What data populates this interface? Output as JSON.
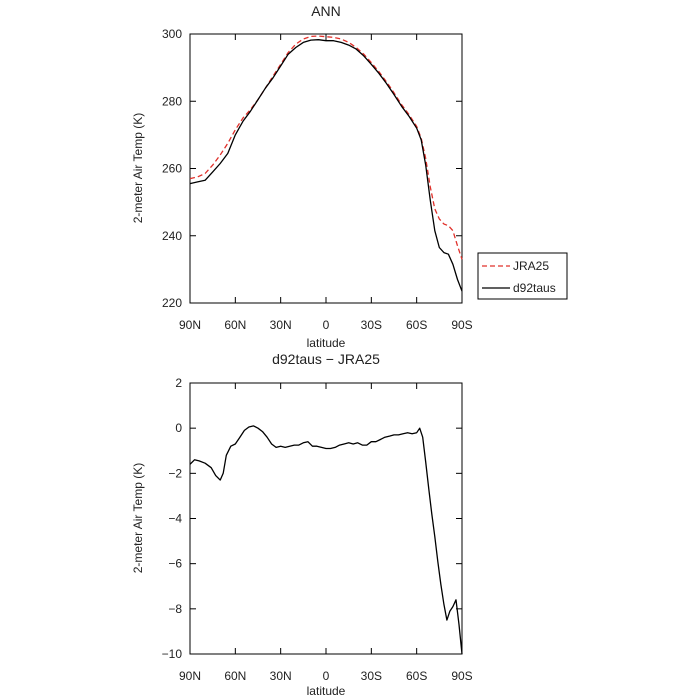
{
  "chart_data": [
    {
      "type": "line",
      "title": "ANN",
      "xlabel": "latitude",
      "ylabel": "2-meter Air Temp (K)",
      "xlim": [
        90,
        -90
      ],
      "ylim": [
        220,
        300
      ],
      "x_ticks": [
        90,
        60,
        30,
        0,
        -30,
        -60,
        -90
      ],
      "x_tick_labels": [
        "90N",
        "60N",
        "30N",
        "0",
        "30S",
        "60S",
        "90S"
      ],
      "y_ticks": [
        220,
        240,
        260,
        280,
        300
      ],
      "y_tick_labels": [
        "220",
        "240",
        "260",
        "280",
        "300"
      ],
      "legend": {
        "placement": "right"
      },
      "series": [
        {
          "name": "JRA25",
          "color": "#e0302a",
          "dash": true,
          "points": [
            [
              90,
              257.0
            ],
            [
              85,
              257.5
            ],
            [
              80,
              258.5
            ],
            [
              75,
              261
            ],
            [
              70,
              264
            ],
            [
              65,
              267.5
            ],
            [
              60,
              271.5
            ],
            [
              55,
              275
            ],
            [
              50,
              277.5
            ],
            [
              45,
              280.5
            ],
            [
              40,
              284
            ],
            [
              35,
              287.5
            ],
            [
              30,
              291
            ],
            [
              25,
              294.5
            ],
            [
              20,
              297
            ],
            [
              15,
              298.5
            ],
            [
              10,
              299.3
            ],
            [
              5,
              299.4
            ],
            [
              0,
              299.2
            ],
            [
              -5,
              299.0
            ],
            [
              -10,
              298.5
            ],
            [
              -15,
              297.5
            ],
            [
              -20,
              296.0
            ],
            [
              -25,
              294.0
            ],
            [
              -30,
              291.5
            ],
            [
              -35,
              288.8
            ],
            [
              -40,
              285.8
            ],
            [
              -45,
              282.5
            ],
            [
              -50,
              279.0
            ],
            [
              -55,
              276.0
            ],
            [
              -60,
              272.5
            ],
            [
              -63,
              269.0
            ],
            [
              -66,
              263.0
            ],
            [
              -69,
              254.5
            ],
            [
              -72,
              248.0
            ],
            [
              -75,
              245.0
            ],
            [
              -78,
              243.5
            ],
            [
              -81,
              243.0
            ],
            [
              -84,
              241.5
            ],
            [
              -87,
              237.0
            ],
            [
              -90,
              233.0
            ]
          ]
        },
        {
          "name": "d92taus",
          "color": "#000000",
          "dash": false,
          "points": [
            [
              90,
              255.5
            ],
            [
              85,
              256.0
            ],
            [
              80,
              256.5
            ],
            [
              75,
              259
            ],
            [
              70,
              261.5
            ],
            [
              65,
              264.5
            ],
            [
              60,
              270.0
            ],
            [
              55,
              274.0
            ],
            [
              50,
              277.0
            ],
            [
              45,
              280.5
            ],
            [
              40,
              284.0
            ],
            [
              35,
              287.0
            ],
            [
              30,
              290.5
            ],
            [
              25,
              294.0
            ],
            [
              20,
              296.0
            ],
            [
              15,
              297.5
            ],
            [
              10,
              298.2
            ],
            [
              5,
              298.3
            ],
            [
              0,
              298.0
            ],
            [
              -5,
              298.0
            ],
            [
              -10,
              297.5
            ],
            [
              -15,
              296.7
            ],
            [
              -20,
              295.5
            ],
            [
              -25,
              293.5
            ],
            [
              -30,
              291.0
            ],
            [
              -35,
              288.3
            ],
            [
              -40,
              285.3
            ],
            [
              -45,
              282.0
            ],
            [
              -50,
              278.5
            ],
            [
              -55,
              275.5
            ],
            [
              -60,
              272.0
            ],
            [
              -63,
              268.5
            ],
            [
              -66,
              261.0
            ],
            [
              -69,
              250.5
            ],
            [
              -72,
              241.5
            ],
            [
              -75,
              236.5
            ],
            [
              -78,
              235.0
            ],
            [
              -81,
              234.5
            ],
            [
              -84,
              231.5
            ],
            [
              -87,
              227.0
            ],
            [
              -90,
              223.5
            ]
          ]
        }
      ]
    },
    {
      "type": "line",
      "title": "d92taus − JRA25",
      "xlabel": "latitude",
      "ylabel": "2-meter Air Temp (K)",
      "xlim": [
        90,
        -90
      ],
      "ylim": [
        -10,
        2
      ],
      "x_ticks": [
        90,
        60,
        30,
        0,
        -30,
        -60,
        -90
      ],
      "x_tick_labels": [
        "90N",
        "60N",
        "30N",
        "0",
        "30S",
        "60S",
        "90S"
      ],
      "y_ticks": [
        -10,
        -8,
        -6,
        -4,
        -2,
        0,
        2
      ],
      "y_tick_labels": [
        "−10",
        "−8",
        "−6",
        "−4",
        "−2",
        "0",
        "2"
      ],
      "series": [
        {
          "color": "#000000",
          "dash": false,
          "points": [
            [
              90,
              -1.6
            ],
            [
              87,
              -1.4
            ],
            [
              84,
              -1.45
            ],
            [
              80,
              -1.55
            ],
            [
              76,
              -1.75
            ],
            [
              73,
              -2.1
            ],
            [
              70,
              -2.3
            ],
            [
              68,
              -2.0
            ],
            [
              66,
              -1.2
            ],
            [
              63,
              -0.8
            ],
            [
              60,
              -0.7
            ],
            [
              57,
              -0.4
            ],
            [
              54,
              -0.1
            ],
            [
              51,
              0.05
            ],
            [
              48,
              0.1
            ],
            [
              45,
              0.0
            ],
            [
              42,
              -0.15
            ],
            [
              39,
              -0.4
            ],
            [
              36,
              -0.7
            ],
            [
              33,
              -0.85
            ],
            [
              30,
              -0.8
            ],
            [
              27,
              -0.85
            ],
            [
              24,
              -0.8
            ],
            [
              21,
              -0.75
            ],
            [
              18,
              -0.75
            ],
            [
              15,
              -0.65
            ],
            [
              12,
              -0.6
            ],
            [
              9,
              -0.8
            ],
            [
              6,
              -0.8
            ],
            [
              3,
              -0.85
            ],
            [
              0,
              -0.9
            ],
            [
              -3,
              -0.9
            ],
            [
              -6,
              -0.85
            ],
            [
              -9,
              -0.75
            ],
            [
              -12,
              -0.7
            ],
            [
              -15,
              -0.65
            ],
            [
              -18,
              -0.7
            ],
            [
              -21,
              -0.65
            ],
            [
              -24,
              -0.75
            ],
            [
              -27,
              -0.75
            ],
            [
              -30,
              -0.6
            ],
            [
              -33,
              -0.6
            ],
            [
              -36,
              -0.5
            ],
            [
              -39,
              -0.4
            ],
            [
              -42,
              -0.35
            ],
            [
              -45,
              -0.3
            ],
            [
              -48,
              -0.3
            ],
            [
              -51,
              -0.25
            ],
            [
              -54,
              -0.2
            ],
            [
              -57,
              -0.25
            ],
            [
              -60,
              -0.2
            ],
            [
              -62,
              0.0
            ],
            [
              -64,
              -0.4
            ],
            [
              -66,
              -1.5
            ],
            [
              -68,
              -2.7
            ],
            [
              -70,
              -3.8
            ],
            [
              -72,
              -4.8
            ],
            [
              -74,
              -5.9
            ],
            [
              -76,
              -6.9
            ],
            [
              -78,
              -7.8
            ],
            [
              -80,
              -8.5
            ],
            [
              -82,
              -8.1
            ],
            [
              -84,
              -7.9
            ],
            [
              -86,
              -7.6
            ],
            [
              -88,
              -8.7
            ],
            [
              -90,
              -10.0
            ]
          ]
        }
      ]
    }
  ]
}
